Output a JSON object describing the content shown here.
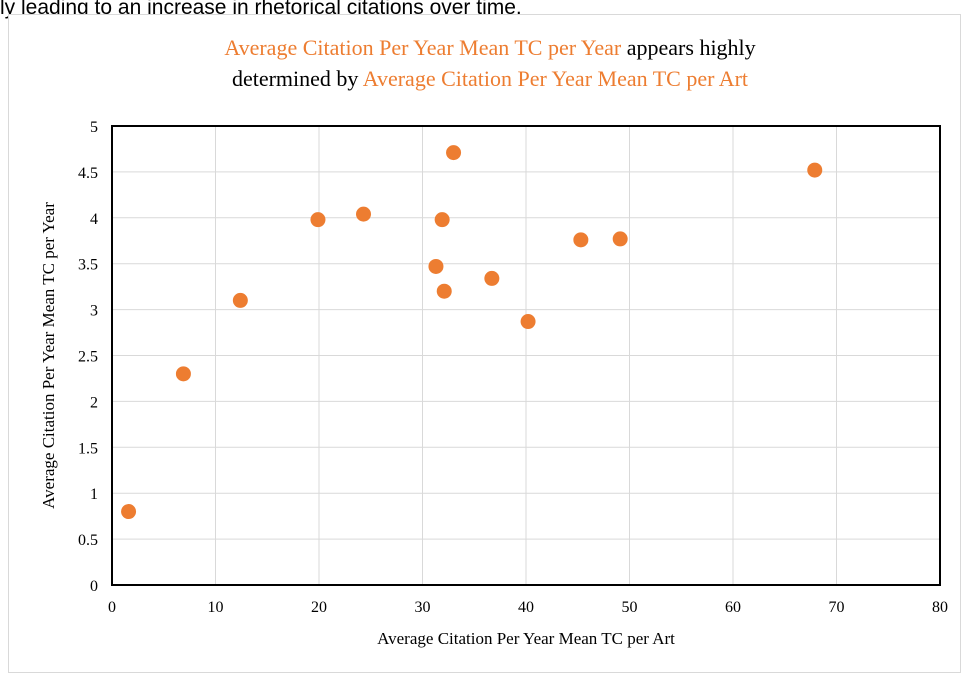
{
  "top_text": "ly leading to an increase in rhetorical citations over time.",
  "colors": {
    "accent": "#ED7D31",
    "text": "#000000",
    "grid": "#d9d9d9"
  },
  "chart_data": {
    "type": "scatter",
    "title_lines": [
      [
        {
          "text": "Average Citation Per Year Mean TC per Year",
          "accent": true
        },
        {
          "text": " appears highly",
          "accent": false
        }
      ],
      [
        {
          "text": "determined by ",
          "accent": false
        },
        {
          "text": "Average Citation Per Year Mean TC per Art",
          "accent": true
        }
      ]
    ],
    "xlabel": "Average Citation Per Year Mean TC per Art",
    "ylabel": "Average Citation Per Year Mean TC per Year",
    "xlim": [
      0,
      80
    ],
    "ylim": [
      0,
      5
    ],
    "x_ticks": [
      "0",
      "10",
      "20",
      "30",
      "40",
      "50",
      "60",
      "70",
      "80"
    ],
    "y_ticks": [
      "0",
      "0.5",
      "1",
      "1.5",
      "2",
      "2.5",
      "3",
      "3.5",
      "4",
      "4.5",
      "5"
    ],
    "grid": true,
    "points": [
      {
        "x": 1.6,
        "y": 0.8
      },
      {
        "x": 6.9,
        "y": 2.3
      },
      {
        "x": 12.4,
        "y": 3.1
      },
      {
        "x": 19.9,
        "y": 3.98
      },
      {
        "x": 24.3,
        "y": 4.04
      },
      {
        "x": 31.3,
        "y": 3.47
      },
      {
        "x": 31.9,
        "y": 3.98
      },
      {
        "x": 32.1,
        "y": 3.2
      },
      {
        "x": 33.0,
        "y": 4.71
      },
      {
        "x": 36.7,
        "y": 3.34
      },
      {
        "x": 40.2,
        "y": 2.87
      },
      {
        "x": 45.3,
        "y": 3.76
      },
      {
        "x": 49.1,
        "y": 3.77
      },
      {
        "x": 67.9,
        "y": 4.52
      }
    ]
  }
}
